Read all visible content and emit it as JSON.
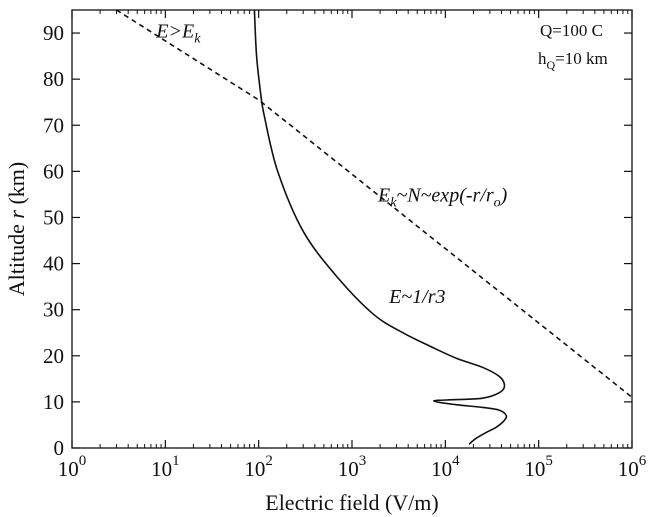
{
  "chart_data": {
    "type": "line",
    "xlabel": "Electric field (V/m)",
    "ylabel": "Altitude r (km)",
    "xscale": "log",
    "xlim": [
      1,
      1000000
    ],
    "ylim": [
      0,
      95
    ],
    "x_ticks": [
      {
        "value": 1,
        "mantissa": "10",
        "exp": "0"
      },
      {
        "value": 10,
        "mantissa": "10",
        "exp": "1"
      },
      {
        "value": 100,
        "mantissa": "10",
        "exp": "2"
      },
      {
        "value": 1000,
        "mantissa": "10",
        "exp": "3"
      },
      {
        "value": 10000,
        "mantissa": "10",
        "exp": "4"
      },
      {
        "value": 100000,
        "mantissa": "10",
        "exp": "5"
      },
      {
        "value": 1000000,
        "mantissa": "10",
        "exp": "6"
      }
    ],
    "y_ticks": [
      0,
      10,
      20,
      30,
      40,
      50,
      60,
      70,
      80,
      90
    ],
    "grid": false,
    "series": [
      {
        "style": "solid",
        "color": "#111111",
        "points": [
          [
            90,
            95
          ],
          [
            95,
            85
          ],
          [
            105,
            77
          ],
          [
            115,
            72
          ],
          [
            160,
            60
          ],
          [
            300,
            47
          ],
          [
            700,
            37
          ],
          [
            1700,
            29
          ],
          [
            3500,
            25
          ],
          [
            7000,
            22
          ],
          [
            13000,
            19.5
          ],
          [
            25000,
            17.5
          ],
          [
            38000,
            15.5
          ],
          [
            43000,
            13.5
          ],
          [
            38000,
            12
          ],
          [
            25000,
            10.8
          ],
          [
            13000,
            10.5
          ],
          [
            7500,
            10.2
          ],
          [
            13000,
            9.4
          ],
          [
            25000,
            8.8
          ],
          [
            38000,
            8.2
          ],
          [
            45000,
            7
          ],
          [
            42000,
            5.8
          ],
          [
            35000,
            4.5
          ],
          [
            27000,
            3.3
          ],
          [
            21000,
            2
          ],
          [
            18000,
            0.8
          ]
        ]
      },
      {
        "style": "dashed",
        "color": "#111111",
        "points": [
          [
            3,
            95
          ],
          [
            100,
            75.5
          ],
          [
            1000000,
            11
          ]
        ]
      }
    ],
    "annotations": [
      {
        "id": "e-gt-ek",
        "base": "E>E",
        "sub": "k",
        "rest": "",
        "x": 8,
        "y": 89
      },
      {
        "id": "ek-law",
        "base": "E",
        "sub": "k",
        "rest": "~N~exp(-r/r",
        "sub2": "o",
        "rest2": ")",
        "x": 1900,
        "y": 53.5
      },
      {
        "id": "e-inv-r3",
        "base": "E~1/r3",
        "x": 2500,
        "y": 31.5
      }
    ],
    "info_box": {
      "q_text": "Q=100 C",
      "h_base": "h",
      "h_sub": "Q",
      "h_rest": "=10 km"
    }
  }
}
